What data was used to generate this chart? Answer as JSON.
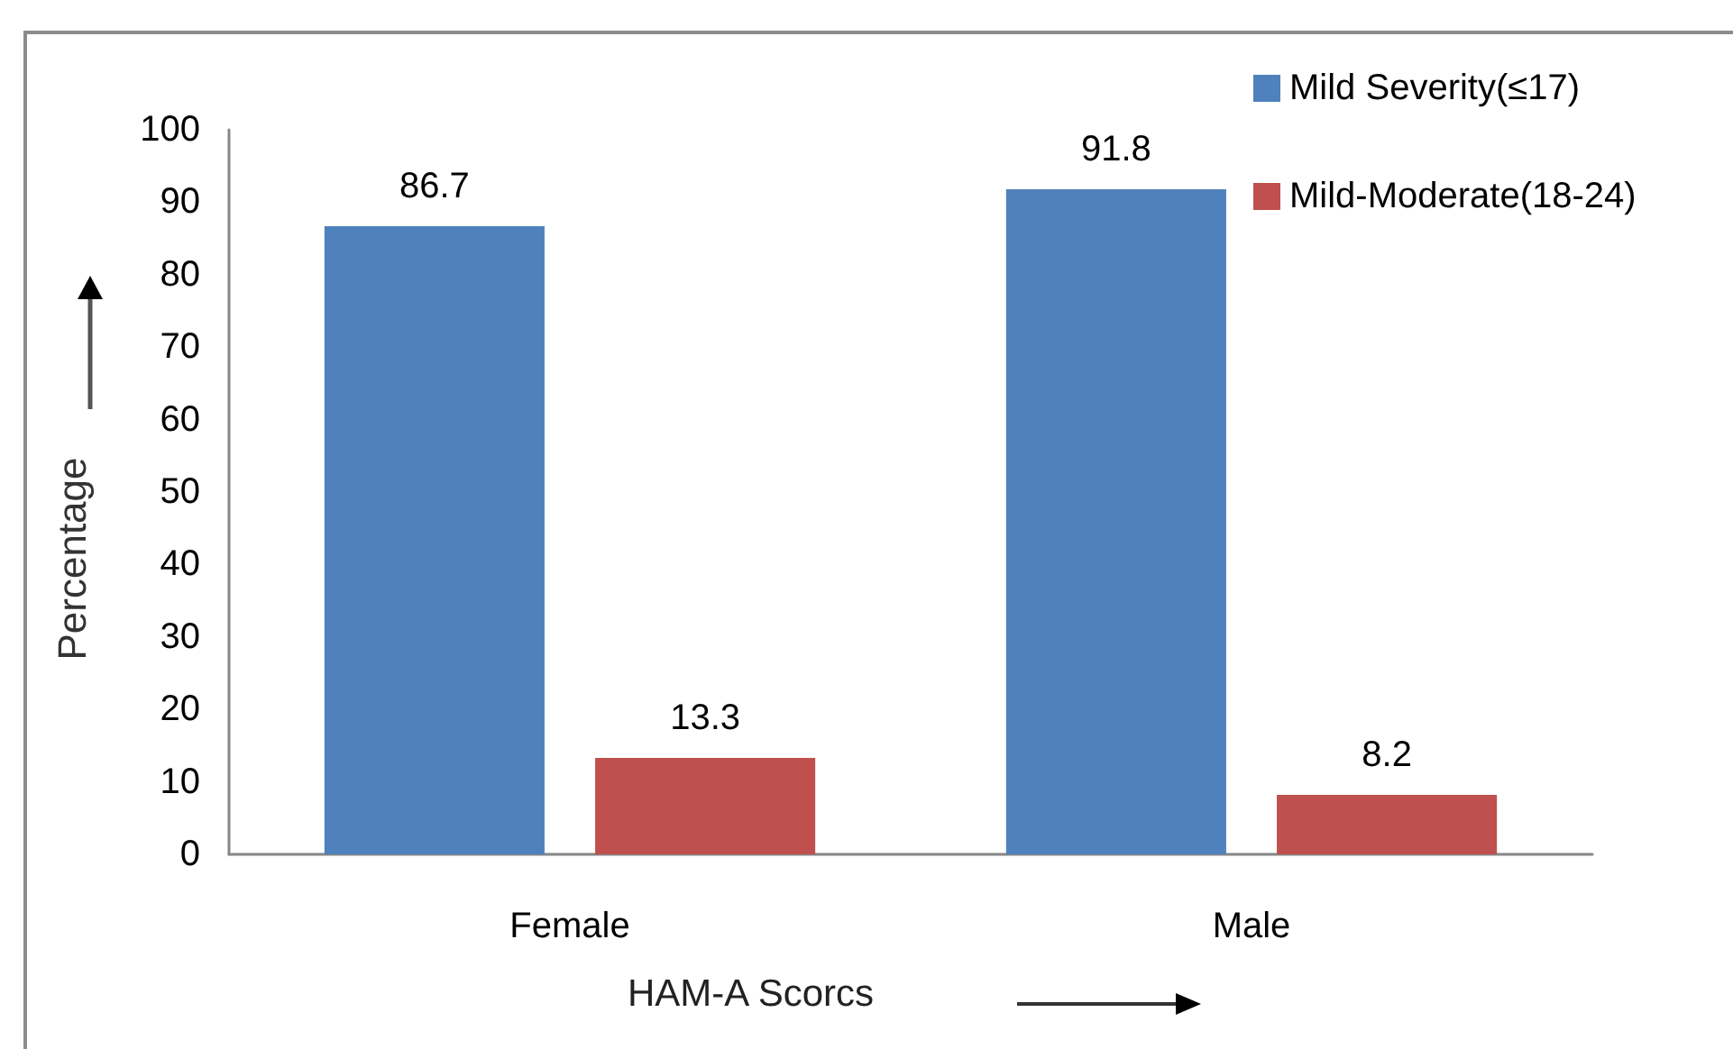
{
  "chart_data": {
    "type": "bar",
    "xlabel": "HAM-A Scorcs",
    "ylabel": "Percentage",
    "categories": [
      "Female",
      "Male"
    ],
    "series": [
      {
        "name": "Mild Severity(≤17)",
        "color": "#4f81bd",
        "values": [
          86.7,
          91.8
        ]
      },
      {
        "name": "Mild-Moderate(18-24)",
        "color": "#c0504d",
        "values": [
          13.3,
          8.2
        ]
      }
    ],
    "ylim": [
      0,
      100
    ],
    "yticks": [
      0,
      10,
      20,
      30,
      40,
      50,
      60,
      70,
      80,
      90,
      100
    ],
    "grid": false,
    "legend": "top right",
    "data_labels": true
  }
}
